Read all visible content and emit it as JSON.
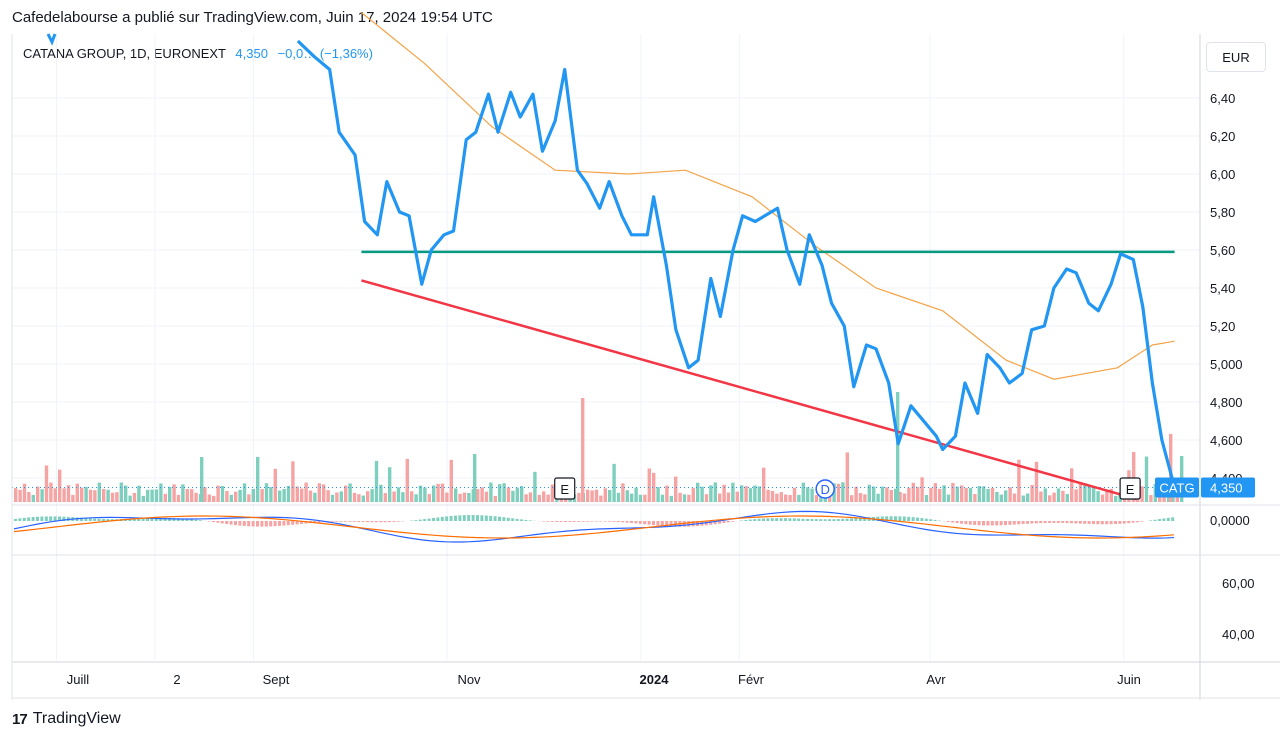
{
  "header": {
    "text": "Cafedelabourse a publié sur TradingView.com, Juin 17, 2024 19:54 UTC"
  },
  "legend": {
    "symbol": "CATANA GROUP, 1D, EURONEXT",
    "value": "4,350",
    "change": "−0,0… (−1,36%)"
  },
  "currency_button": "EUR",
  "footer": {
    "logo": "17",
    "brand": "TradingView"
  },
  "price_tag": {
    "ticker": "CATG",
    "value": "4,350"
  },
  "event_markers": [
    {
      "label": "E",
      "date": "2023-12-08"
    },
    {
      "label": "D",
      "date": "2024-02-28"
    },
    {
      "label": "E",
      "date": "2024-06-03"
    }
  ],
  "colors": {
    "price": "#2196f3",
    "ma": "#f5a347",
    "support": "#089981",
    "trendline": "#f23645",
    "vol_up": "#7fcfbe",
    "vol_down": "#f5a3a3",
    "macd": "#2962ff",
    "signal": "#ff6d00"
  },
  "chart_data": {
    "type": "line",
    "y_ticks": [
      "6,40",
      "6,20",
      "6,00",
      "5,80",
      "5,60",
      "5,40",
      "5,20",
      "5,000",
      "4,800",
      "4,600",
      "4,400"
    ],
    "x_ticks": [
      "Juill",
      "2",
      "Sept",
      "Nov",
      "2024",
      "Févr",
      "Avr",
      "Juin"
    ],
    "price_series": {
      "name": "CATANA GROUP",
      "points": [
        [
          "2023-09-15",
          6.7
        ],
        [
          "2023-09-20",
          6.62
        ],
        [
          "2023-09-25",
          6.55
        ],
        [
          "2023-09-28",
          6.22
        ],
        [
          "2023-10-03",
          6.1
        ],
        [
          "2023-10-06",
          5.75
        ],
        [
          "2023-10-10",
          5.68
        ],
        [
          "2023-10-13",
          5.96
        ],
        [
          "2023-10-17",
          5.8
        ],
        [
          "2023-10-20",
          5.78
        ],
        [
          "2023-10-24",
          5.42
        ],
        [
          "2023-10-27",
          5.6
        ],
        [
          "2023-10-31",
          5.68
        ],
        [
          "2023-11-03",
          5.7
        ],
        [
          "2023-11-07",
          6.18
        ],
        [
          "2023-11-10",
          6.22
        ],
        [
          "2023-11-14",
          6.42
        ],
        [
          "2023-11-17",
          6.22
        ],
        [
          "2023-11-21",
          6.43
        ],
        [
          "2023-11-24",
          6.3
        ],
        [
          "2023-11-28",
          6.42
        ],
        [
          "2023-12-01",
          6.12
        ],
        [
          "2023-12-05",
          6.28
        ],
        [
          "2023-12-08",
          6.55
        ],
        [
          "2023-12-12",
          6.02
        ],
        [
          "2023-12-15",
          5.95
        ],
        [
          "2023-12-19",
          5.82
        ],
        [
          "2023-12-22",
          5.96
        ],
        [
          "2023-12-26",
          5.78
        ],
        [
          "2023-12-29",
          5.68
        ],
        [
          "2024-01-03",
          5.68
        ],
        [
          "2024-01-05",
          5.88
        ],
        [
          "2024-01-09",
          5.52
        ],
        [
          "2024-01-12",
          5.18
        ],
        [
          "2024-01-16",
          4.98
        ],
        [
          "2024-01-19",
          5.02
        ],
        [
          "2024-01-23",
          5.45
        ],
        [
          "2024-01-26",
          5.25
        ],
        [
          "2024-01-30",
          5.6
        ],
        [
          "2024-02-02",
          5.78
        ],
        [
          "2024-02-06",
          5.75
        ],
        [
          "2024-02-09",
          5.78
        ],
        [
          "2024-02-13",
          5.82
        ],
        [
          "2024-02-16",
          5.6
        ],
        [
          "2024-02-20",
          5.42
        ],
        [
          "2024-02-23",
          5.68
        ],
        [
          "2024-02-27",
          5.52
        ],
        [
          "2024-03-01",
          5.32
        ],
        [
          "2024-03-05",
          5.2
        ],
        [
          "2024-03-08",
          4.88
        ],
        [
          "2024-03-12",
          5.1
        ],
        [
          "2024-03-15",
          5.08
        ],
        [
          "2024-03-19",
          4.9
        ],
        [
          "2024-03-22",
          4.58
        ],
        [
          "2024-03-26",
          4.78
        ],
        [
          "2024-03-29",
          4.72
        ],
        [
          "2024-04-03",
          4.62
        ],
        [
          "2024-04-05",
          4.55
        ],
        [
          "2024-04-09",
          4.62
        ],
        [
          "2024-04-12",
          4.9
        ],
        [
          "2024-04-16",
          4.74
        ],
        [
          "2024-04-19",
          5.05
        ],
        [
          "2024-04-23",
          4.98
        ],
        [
          "2024-04-26",
          4.9
        ],
        [
          "2024-04-30",
          4.95
        ],
        [
          "2024-05-03",
          5.18
        ],
        [
          "2024-05-07",
          5.2
        ],
        [
          "2024-05-10",
          5.4
        ],
        [
          "2024-05-14",
          5.5
        ],
        [
          "2024-05-17",
          5.48
        ],
        [
          "2024-05-21",
          5.32
        ],
        [
          "2024-05-24",
          5.28
        ],
        [
          "2024-05-28",
          5.42
        ],
        [
          "2024-05-31",
          5.58
        ],
        [
          "2024-06-04",
          5.55
        ],
        [
          "2024-06-07",
          5.3
        ],
        [
          "2024-06-10",
          4.9
        ],
        [
          "2024-06-13",
          4.6
        ],
        [
          "2024-06-17",
          4.35
        ]
      ]
    },
    "moving_average": {
      "points": [
        [
          "2023-10-05",
          6.85
        ],
        [
          "2023-10-25",
          6.58
        ],
        [
          "2023-11-15",
          6.25
        ],
        [
          "2023-12-05",
          6.02
        ],
        [
          "2023-12-28",
          6.0
        ],
        [
          "2024-01-15",
          6.02
        ],
        [
          "2024-02-05",
          5.88
        ],
        [
          "2024-02-25",
          5.62
        ],
        [
          "2024-03-15",
          5.4
        ],
        [
          "2024-04-05",
          5.28
        ],
        [
          "2024-04-25",
          5.02
        ],
        [
          "2024-05-10",
          4.92
        ],
        [
          "2024-05-30",
          4.98
        ],
        [
          "2024-06-10",
          5.1
        ],
        [
          "2024-06-17",
          5.12
        ]
      ]
    },
    "horizontal_line": {
      "value": 5.59,
      "from": "2023-10-05",
      "to": "2024-06-17"
    },
    "trendline": {
      "from": [
        "2023-10-05",
        5.44
      ],
      "to": [
        "2024-06-05",
        4.29
      ]
    },
    "indicator": {
      "y_ticks": [
        "0,0000"
      ]
    },
    "rsi_pane": {
      "y_ticks": [
        "60,00",
        "40,00"
      ]
    }
  }
}
